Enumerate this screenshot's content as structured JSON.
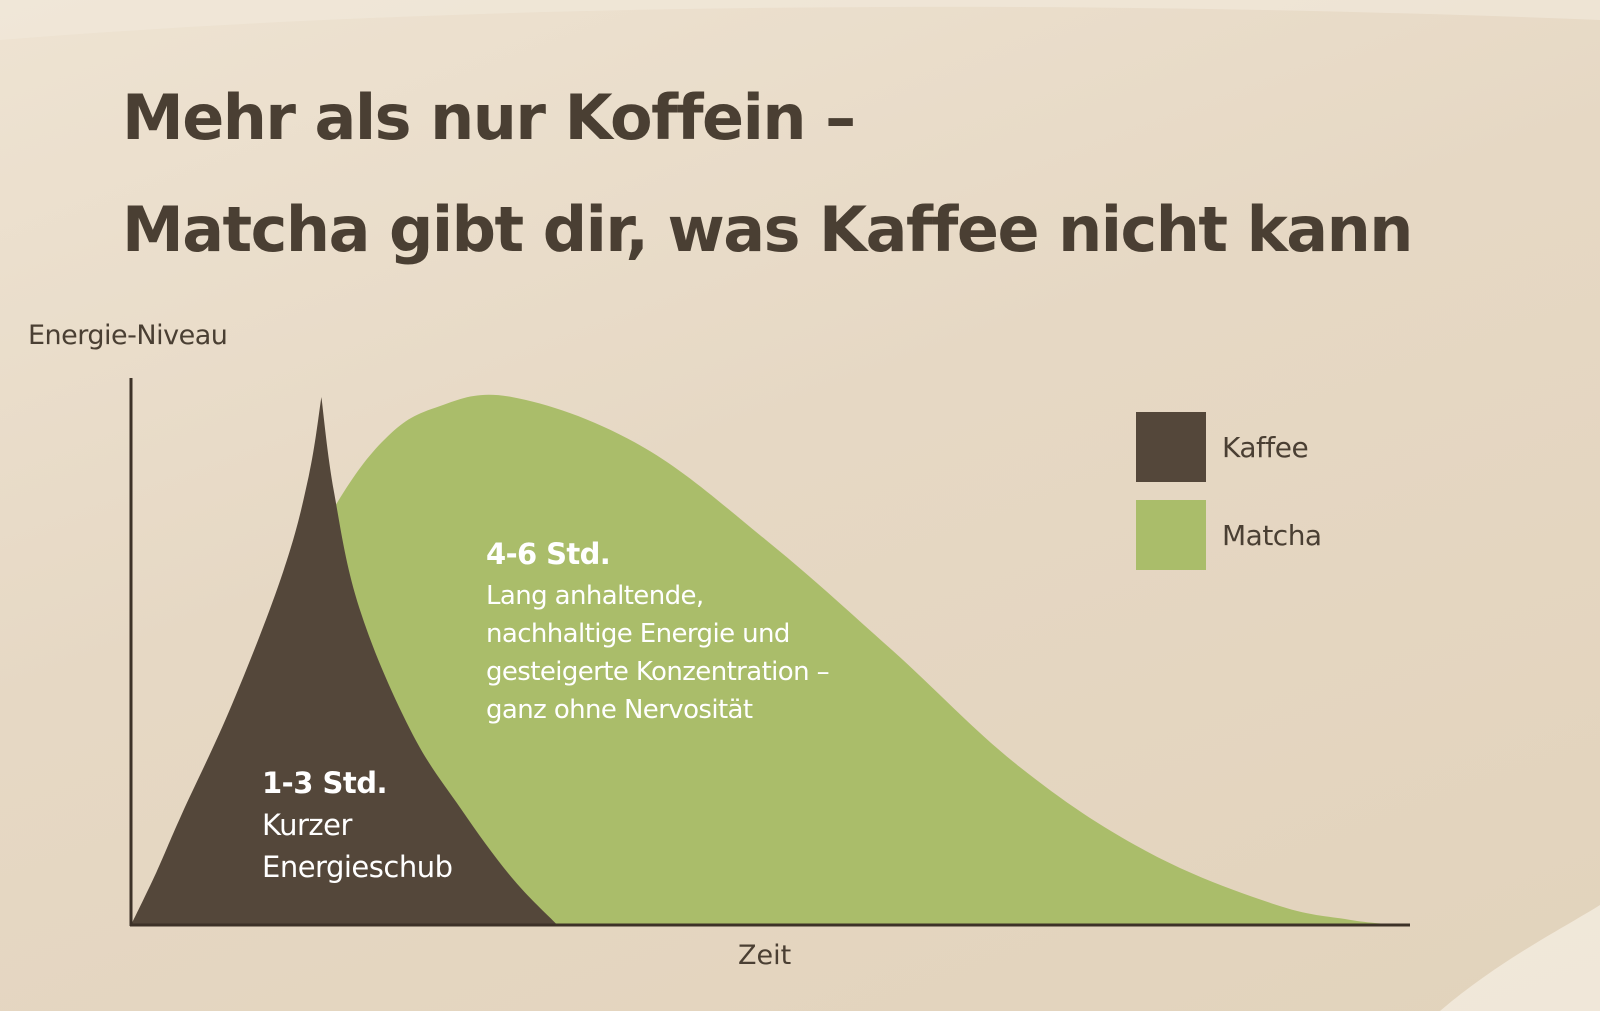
{
  "title": {
    "line1": "Mehr als nur Koffein –",
    "line2": "Matcha gibt dir, was Kaffee nicht kann"
  },
  "chart_data": {
    "type": "area",
    "title": "Mehr als nur Koffein – Matcha gibt dir, was Kaffee nicht kann",
    "xlabel": "Zeit",
    "ylabel": "Energie-Niveau",
    "axis_ticks": false,
    "grid": false,
    "legend_position": "top-right",
    "series": [
      {
        "name": "Kaffee",
        "color": "#54473a",
        "x": [
          0,
          10,
          20,
          40,
          60,
          70,
          75,
          80,
          90,
          110,
          130,
          150,
          168
        ],
        "values": [
          0,
          10,
          21,
          42,
          67,
          85,
          100,
          82,
          60,
          37,
          22,
          9,
          0
        ]
      },
      {
        "name": "Matcha",
        "color": "#aabd6a",
        "x": [
          0,
          20,
          40,
          60,
          80,
          100,
          120,
          150,
          200,
          250,
          300,
          350,
          400,
          450,
          480,
          500
        ],
        "values": [
          0,
          14,
          36,
          60,
          79,
          92,
          98,
          100,
          91,
          73,
          52,
          30,
          14,
          4,
          1,
          0
        ]
      }
    ],
    "annotations": [
      {
        "series": "Kaffee",
        "duration": "1-3 Std.",
        "text": "Kurzer\nEnergieschub"
      },
      {
        "series": "Matcha",
        "duration": "4-6 Std.",
        "text": "Lang anhaltende,\nnachhaltige Energie und\ngesteigerte Konzentration –\nganz ohne Nervosität"
      }
    ]
  },
  "legend": [
    {
      "label": "Kaffee",
      "color": "#54473a"
    },
    {
      "label": "Matcha",
      "color": "#aabd6a"
    }
  ],
  "colors": {
    "text": "#4a3f33",
    "axis": "#3d3228"
  }
}
